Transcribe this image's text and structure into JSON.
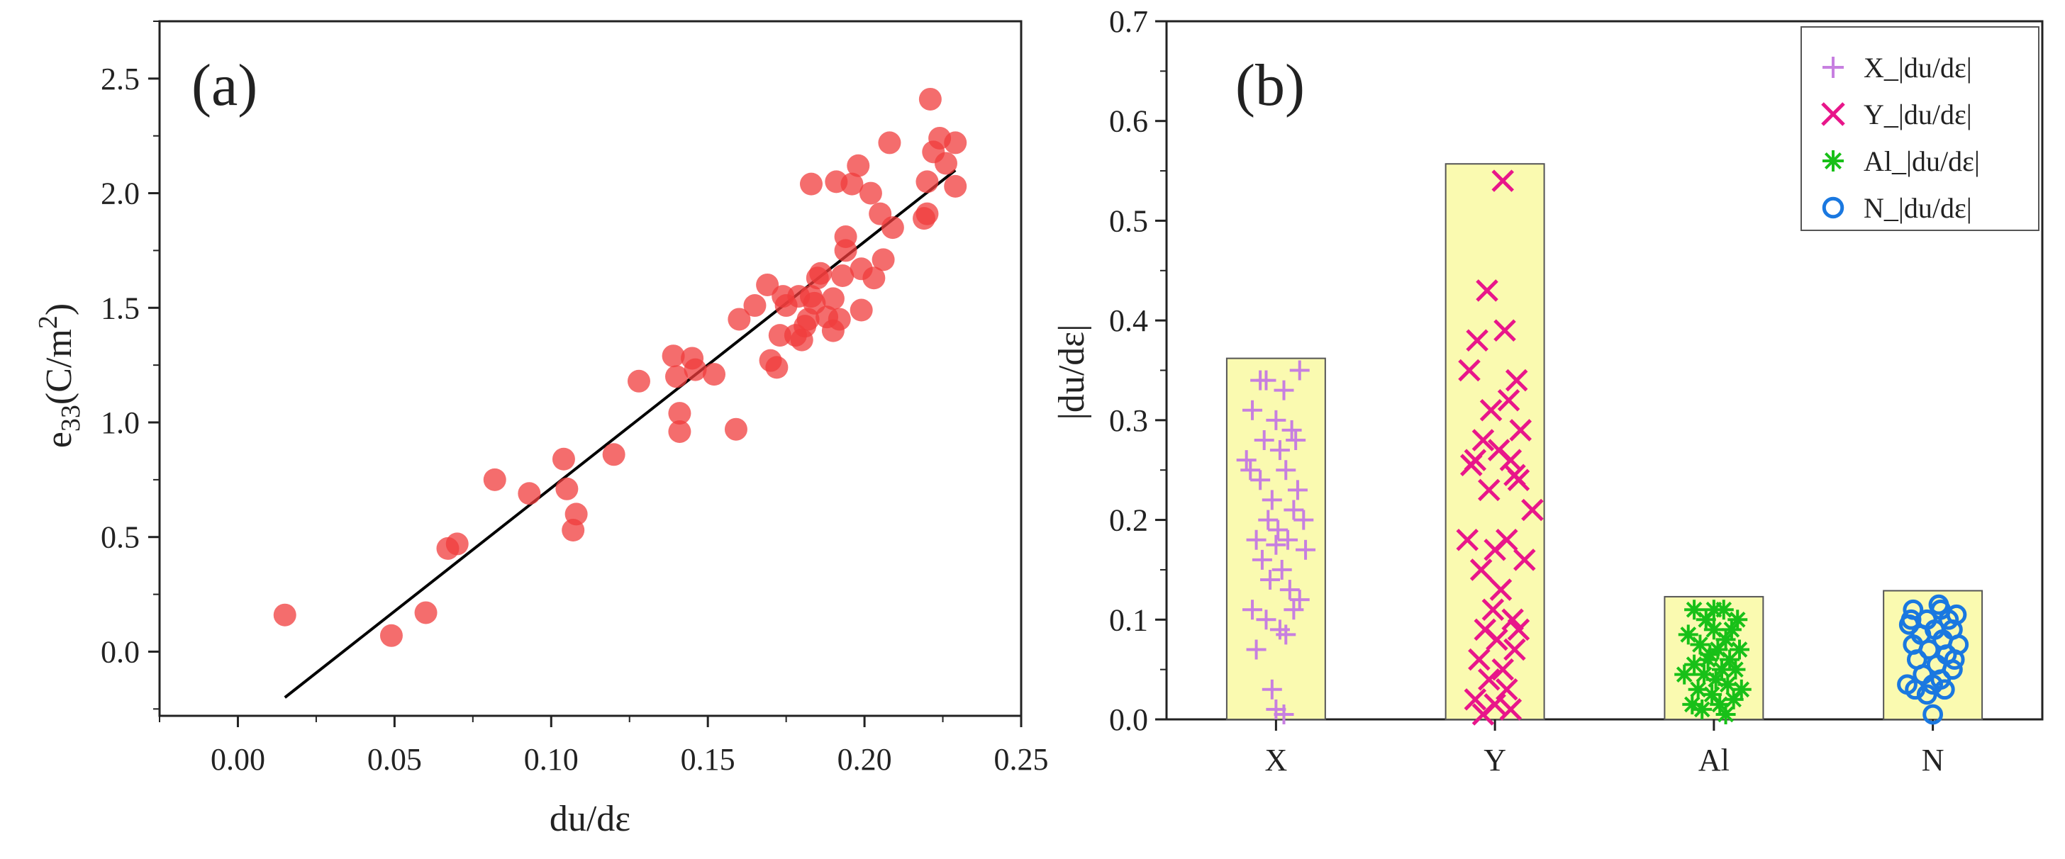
{
  "chart_data": [
    {
      "type": "scatter",
      "panel_label": "(a)",
      "xlabel": "du/dε",
      "ylabel": "e",
      "ylabel_sub": "33",
      "ylabel_open": "(C/m",
      "ylabel_sup": "2",
      "ylabel_close": ")",
      "xlim": [
        -0.025,
        0.25
      ],
      "ylim": [
        -0.28,
        2.75
      ],
      "x_ticks": [
        0.0,
        0.05,
        0.1,
        0.15,
        0.2,
        0.25
      ],
      "x_tick_labels": [
        "0.00",
        "0.05",
        "0.10",
        "0.15",
        "0.20",
        "0.25"
      ],
      "y_ticks": [
        0.0,
        0.5,
        1.0,
        1.5,
        2.0,
        2.5
      ],
      "y_tick_labels": [
        "0.0",
        "0.5",
        "1.0",
        "1.5",
        "2.0",
        "2.5"
      ],
      "grid": false,
      "colors": {
        "points": "#f03c3c",
        "fit_line": "#000000",
        "axis": "#222222"
      },
      "points": [
        [
          0.015,
          0.16
        ],
        [
          0.049,
          0.07
        ],
        [
          0.06,
          0.17
        ],
        [
          0.067,
          0.45
        ],
        [
          0.07,
          0.47
        ],
        [
          0.082,
          0.75
        ],
        [
          0.093,
          0.69
        ],
        [
          0.104,
          0.84
        ],
        [
          0.105,
          0.71
        ],
        [
          0.107,
          0.53
        ],
        [
          0.108,
          0.6
        ],
        [
          0.12,
          0.86
        ],
        [
          0.128,
          1.18
        ],
        [
          0.139,
          1.29
        ],
        [
          0.14,
          1.2
        ],
        [
          0.141,
          0.96
        ],
        [
          0.141,
          1.04
        ],
        [
          0.145,
          1.28
        ],
        [
          0.146,
          1.23
        ],
        [
          0.152,
          1.21
        ],
        [
          0.159,
          0.97
        ],
        [
          0.16,
          1.45
        ],
        [
          0.165,
          1.51
        ],
        [
          0.169,
          1.6
        ],
        [
          0.17,
          1.27
        ],
        [
          0.172,
          1.24
        ],
        [
          0.173,
          1.38
        ],
        [
          0.174,
          1.55
        ],
        [
          0.175,
          1.51
        ],
        [
          0.178,
          1.38
        ],
        [
          0.179,
          1.55
        ],
        [
          0.18,
          1.36
        ],
        [
          0.181,
          1.42
        ],
        [
          0.182,
          1.45
        ],
        [
          0.183,
          1.55
        ],
        [
          0.183,
          2.04
        ],
        [
          0.184,
          1.52
        ],
        [
          0.185,
          1.63
        ],
        [
          0.186,
          1.65
        ],
        [
          0.188,
          1.46
        ],
        [
          0.19,
          1.54
        ],
        [
          0.19,
          1.4
        ],
        [
          0.191,
          2.05
        ],
        [
          0.192,
          1.45
        ],
        [
          0.193,
          1.64
        ],
        [
          0.194,
          1.81
        ],
        [
          0.194,
          1.75
        ],
        [
          0.196,
          2.04
        ],
        [
          0.198,
          2.12
        ],
        [
          0.199,
          1.67
        ],
        [
          0.199,
          1.49
        ],
        [
          0.202,
          2.0
        ],
        [
          0.203,
          1.63
        ],
        [
          0.205,
          1.91
        ],
        [
          0.206,
          1.71
        ],
        [
          0.208,
          2.22
        ],
        [
          0.209,
          1.85
        ],
        [
          0.219,
          1.89
        ],
        [
          0.22,
          2.05
        ],
        [
          0.22,
          1.91
        ],
        [
          0.221,
          2.41
        ],
        [
          0.222,
          2.18
        ],
        [
          0.224,
          2.24
        ],
        [
          0.226,
          2.13
        ],
        [
          0.229,
          2.03
        ],
        [
          0.229,
          2.22
        ]
      ],
      "fit_line": {
        "x": [
          0.015,
          0.229
        ],
        "y": [
          -0.2,
          2.1
        ]
      }
    },
    {
      "type": "bar",
      "panel_label": "(b)",
      "xlabel": "",
      "ylabel": "|du/dε|",
      "categories": [
        "X",
        "Y",
        "Al",
        "N"
      ],
      "bar_values": [
        0.362,
        0.557,
        0.123,
        0.129
      ],
      "ylim": [
        0,
        0.7
      ],
      "y_ticks": [
        0.0,
        0.1,
        0.2,
        0.3,
        0.4,
        0.5,
        0.6,
        0.7
      ],
      "y_tick_labels": [
        "0.0",
        "0.1",
        "0.2",
        "0.3",
        "0.4",
        "0.5",
        "0.6",
        "0.7"
      ],
      "grid": false,
      "legend_position": "top-right",
      "colors": {
        "bar_fill": "#fafab0",
        "bar_edge": "#555555"
      },
      "series": [
        {
          "name": "X_|du/dε|",
          "category": "X",
          "marker": "plus",
          "color": "#c77fe0",
          "points": [
            [
              -0.05,
              0.34
            ],
            [
              0.04,
              0.33
            ],
            [
              0.12,
              0.35
            ],
            [
              -0.12,
              0.31
            ],
            [
              0.0,
              0.3
            ],
            [
              0.08,
              0.29
            ],
            [
              -0.06,
              0.28
            ],
            [
              0.02,
              0.27
            ],
            [
              0.1,
              0.28
            ],
            [
              -0.15,
              0.26
            ],
            [
              -0.08,
              0.24
            ],
            [
              0.05,
              0.25
            ],
            [
              -0.02,
              0.22
            ],
            [
              0.09,
              0.21
            ],
            [
              0.14,
              0.2
            ],
            [
              -0.04,
              0.2
            ],
            [
              0.01,
              0.19
            ],
            [
              -0.1,
              0.18
            ],
            [
              0.06,
              0.18
            ],
            [
              0.15,
              0.17
            ],
            [
              -0.07,
              0.16
            ],
            [
              0.03,
              0.15
            ],
            [
              -0.03,
              0.14
            ],
            [
              0.07,
              0.13
            ],
            [
              0.12,
              0.12
            ],
            [
              -0.12,
              0.11
            ],
            [
              0.09,
              0.11
            ],
            [
              -0.05,
              0.1
            ],
            [
              0.02,
              0.09
            ],
            [
              -0.1,
              0.07
            ],
            [
              0.05,
              0.085
            ],
            [
              -0.02,
              0.03
            ],
            [
              0.0,
              0.01
            ],
            [
              0.04,
              0.005
            ],
            [
              -0.13,
              0.25
            ],
            [
              0.11,
              0.23
            ],
            [
              -0.08,
              0.34
            ],
            [
              0.0,
              0.175
            ]
          ]
        },
        {
          "name": "Y_|du/dε|",
          "category": "Y",
          "marker": "x",
          "color": "#e8168a",
          "points": [
            [
              0.04,
              0.54
            ],
            [
              -0.04,
              0.43
            ],
            [
              -0.09,
              0.38
            ],
            [
              0.05,
              0.39
            ],
            [
              -0.13,
              0.35
            ],
            [
              0.11,
              0.34
            ],
            [
              0.07,
              0.32
            ],
            [
              -0.02,
              0.31
            ],
            [
              0.13,
              0.29
            ],
            [
              -0.06,
              0.28
            ],
            [
              0.02,
              0.27
            ],
            [
              -0.1,
              0.26
            ],
            [
              0.08,
              0.26
            ],
            [
              0.12,
              0.24
            ],
            [
              -0.03,
              0.23
            ],
            [
              0.19,
              0.21
            ],
            [
              -0.14,
              0.18
            ],
            [
              0.06,
              0.18
            ],
            [
              0.0,
              0.17
            ],
            [
              0.15,
              0.16
            ],
            [
              -0.07,
              0.15
            ],
            [
              0.03,
              0.13
            ],
            [
              -0.01,
              0.11
            ],
            [
              0.09,
              0.1
            ],
            [
              -0.05,
              0.09
            ],
            [
              0.01,
              0.08
            ],
            [
              0.1,
              0.07
            ],
            [
              -0.08,
              0.06
            ],
            [
              0.04,
              0.05
            ],
            [
              -0.03,
              0.04
            ],
            [
              0.06,
              0.03
            ],
            [
              -0.1,
              0.02
            ],
            [
              0.0,
              0.015
            ],
            [
              0.08,
              0.01
            ],
            [
              -0.06,
              0.005
            ],
            [
              0.12,
              0.09
            ],
            [
              -0.12,
              0.255
            ],
            [
              0.1,
              0.245
            ]
          ]
        },
        {
          "name": "Al_|du/dε|",
          "category": "Al",
          "marker": "asterisk",
          "color": "#18c018",
          "points": [
            [
              -0.1,
              0.11
            ],
            [
              0.05,
              0.11
            ],
            [
              0.12,
              0.1
            ],
            [
              -0.04,
              0.1
            ],
            [
              0.0,
              0.09
            ],
            [
              0.09,
              0.09
            ],
            [
              -0.13,
              0.085
            ],
            [
              0.06,
              0.08
            ],
            [
              -0.07,
              0.075
            ],
            [
              0.02,
              0.07
            ],
            [
              0.13,
              0.07
            ],
            [
              -0.02,
              0.065
            ],
            [
              0.08,
              0.06
            ],
            [
              -0.1,
              0.055
            ],
            [
              0.04,
              0.05
            ],
            [
              0.11,
              0.05
            ],
            [
              -0.15,
              0.045
            ],
            [
              -0.05,
              0.045
            ],
            [
              0.01,
              0.04
            ],
            [
              0.07,
              0.035
            ],
            [
              -0.08,
              0.03
            ],
            [
              0.14,
              0.03
            ],
            [
              -0.01,
              0.025
            ],
            [
              0.1,
              0.02
            ],
            [
              -0.11,
              0.015
            ],
            [
              0.03,
              0.015
            ],
            [
              -0.06,
              0.01
            ],
            [
              0.06,
              0.005
            ],
            [
              0.0,
              0.11
            ],
            [
              -0.03,
              0.06
            ]
          ]
        },
        {
          "name": "N_|du/dε|",
          "category": "N",
          "marker": "circle",
          "color": "#1a78e0",
          "points": [
            [
              -0.1,
              0.11
            ],
            [
              0.04,
              0.11
            ],
            [
              0.12,
              0.105
            ],
            [
              -0.03,
              0.1
            ],
            [
              0.08,
              0.1
            ],
            [
              -0.12,
              0.095
            ],
            [
              0.01,
              0.09
            ],
            [
              0.1,
              0.09
            ],
            [
              -0.06,
              0.085
            ],
            [
              0.05,
              0.08
            ],
            [
              -0.1,
              0.075
            ],
            [
              0.13,
              0.075
            ],
            [
              -0.02,
              0.07
            ],
            [
              0.07,
              0.065
            ],
            [
              -0.08,
              0.06
            ],
            [
              0.02,
              0.055
            ],
            [
              0.1,
              0.05
            ],
            [
              -0.05,
              0.045
            ],
            [
              0.04,
              0.04
            ],
            [
              -0.13,
              0.035
            ],
            [
              0.0,
              0.035
            ],
            [
              -0.09,
              0.03
            ],
            [
              0.06,
              0.03
            ],
            [
              -0.03,
              0.025
            ],
            [
              0.0,
              0.005
            ],
            [
              0.11,
              0.06
            ],
            [
              -0.11,
              0.1
            ],
            [
              0.03,
              0.115
            ]
          ]
        }
      ]
    }
  ]
}
